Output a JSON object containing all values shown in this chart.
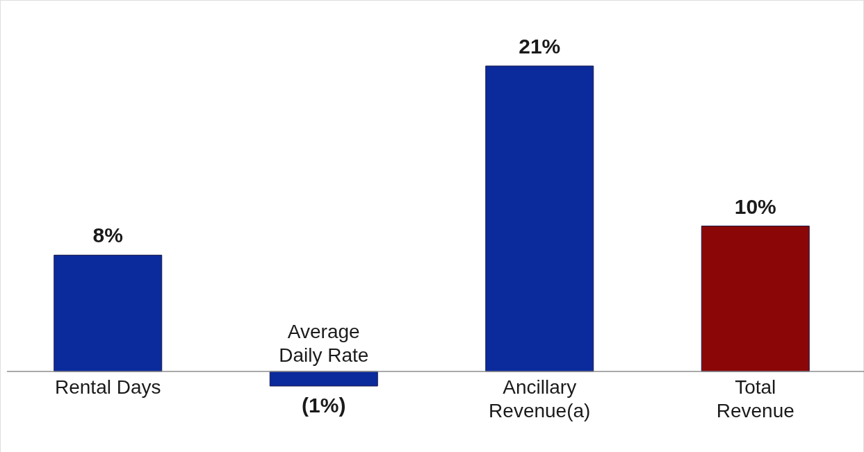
{
  "chart_data": {
    "type": "bar",
    "categories": [
      "Rental Days",
      "Average Daily Rate",
      "Ancillary Revenue(a)",
      "Total Revenue"
    ],
    "values": [
      8,
      -1,
      21,
      10
    ],
    "value_labels": [
      "8%",
      "(1%)",
      "21%",
      "10%"
    ],
    "colors": [
      "#0b2a9c",
      "#0b2a9c",
      "#0b2a9c",
      "#8b0707"
    ]
  }
}
